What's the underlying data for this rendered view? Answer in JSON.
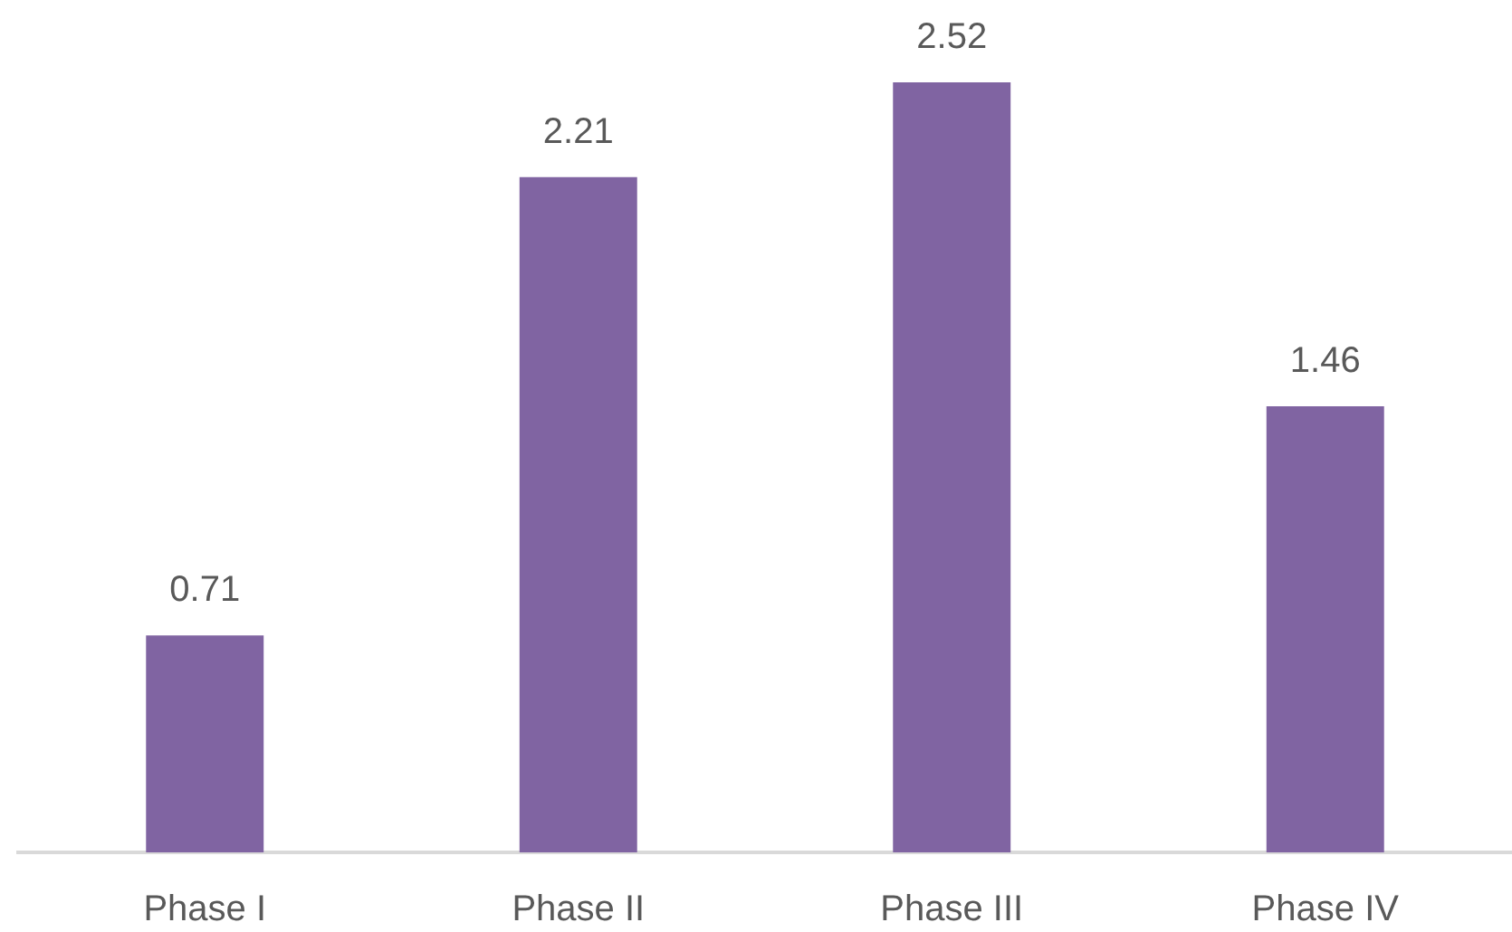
{
  "chart_data": {
    "type": "bar",
    "categories": [
      "Phase I",
      "Phase II",
      "Phase III",
      "Phase IV"
    ],
    "values": [
      0.71,
      2.21,
      2.52,
      1.46
    ],
    "color": "#8064a2",
    "data_labels": true,
    "grid": false,
    "legend": false
  }
}
